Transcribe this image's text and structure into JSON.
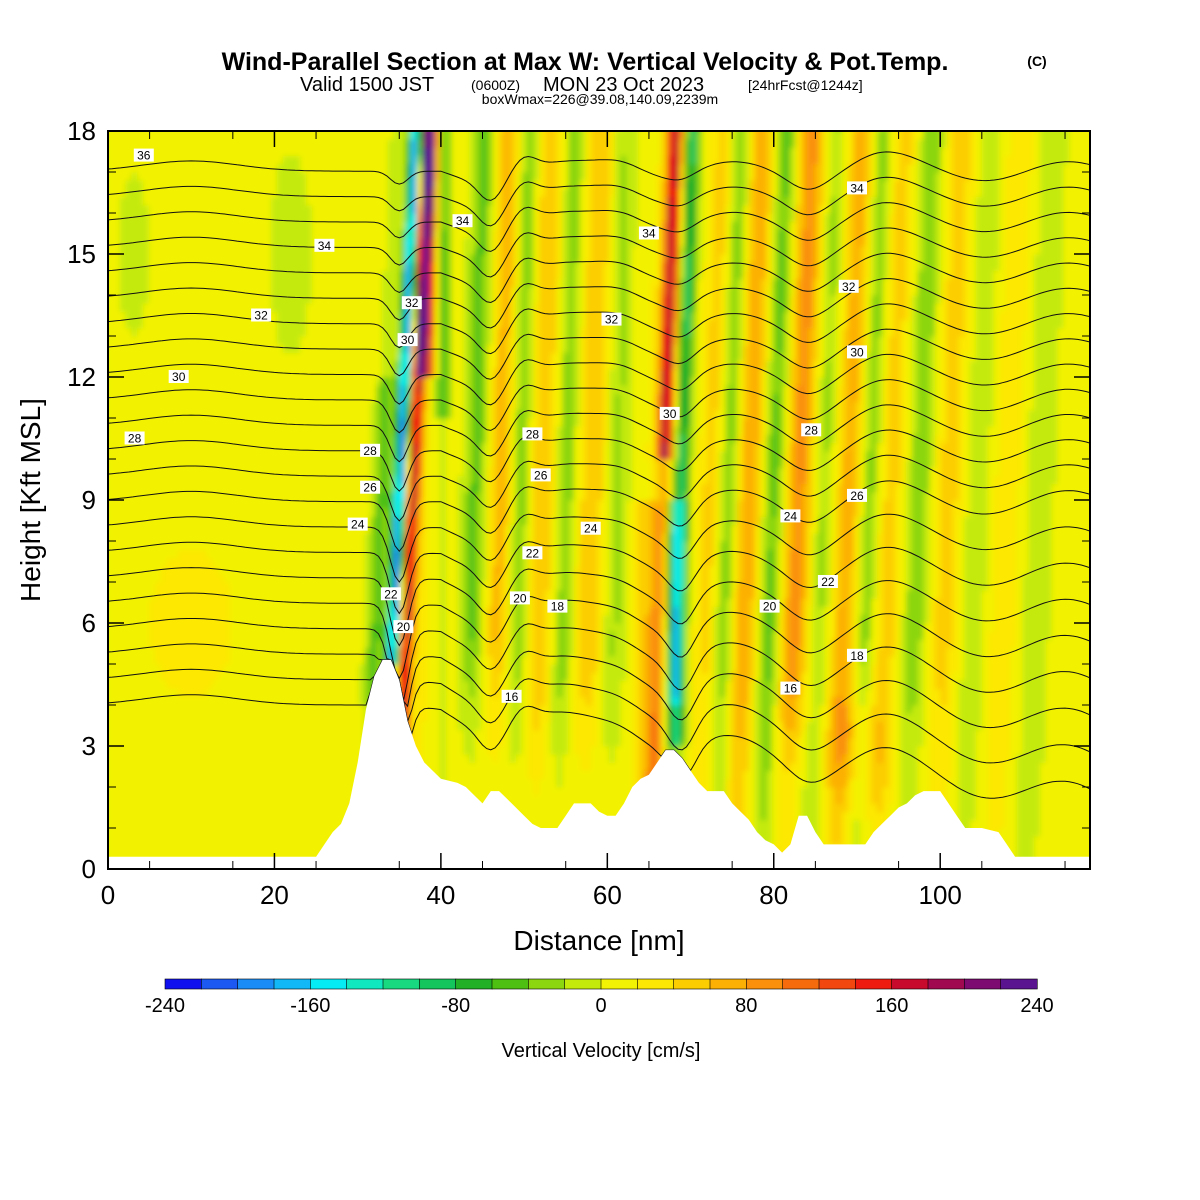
{
  "header": {
    "title": "Wind-Parallel Section at Max W: Vertical Velocity & Pot.Temp.",
    "copyright": "(C)",
    "valid_prefix": "Valid 1500 JST",
    "valid_utc": "(0600Z)",
    "valid_date": "MON 23 Oct 2023",
    "forecast": "[24hrFcst@1244z]",
    "box_info": "boxWmax=226@39.08,140.09,2239m"
  },
  "chart_data": {
    "type": "heatmap",
    "xlabel": "Distance [nm]",
    "ylabel": "Height [Kft MSL]",
    "xlim": [
      0,
      118
    ],
    "ylim": [
      0,
      18
    ],
    "x_ticks": [
      "0",
      "20",
      "40",
      "60",
      "80",
      "100"
    ],
    "y_ticks": [
      "0",
      "3",
      "6",
      "9",
      "12",
      "15",
      "18"
    ],
    "colorbar": {
      "label": "Vertical Velocity [cm/s]",
      "min": -240,
      "max": 240,
      "tick_labels": [
        "-240",
        "-160",
        "-80",
        "0",
        "80",
        "160",
        "240"
      ],
      "colors": [
        "#1010ee",
        "#1c58f2",
        "#1a8cf5",
        "#12b8f5",
        "#05ecf5",
        "#10e8c0",
        "#18d880",
        "#14c45c",
        "#22b026",
        "#4ec012",
        "#8cd610",
        "#c4ea0c",
        "#f2f204",
        "#fce802",
        "#fcce02",
        "#fcb004",
        "#fa900c",
        "#f66c0c",
        "#f24810",
        "#ee1c10",
        "#c80a2c",
        "#a00850",
        "#7c0a70",
        "#5a1490"
      ]
    },
    "contours": {
      "variable": "Potential Temperature",
      "labels": [
        {
          "text": "36",
          "x": 4.3,
          "y": 17.4
        },
        {
          "text": "34",
          "x": 26,
          "y": 15.2
        },
        {
          "text": "32",
          "x": 18.4,
          "y": 13.5
        },
        {
          "text": "30",
          "x": 8.5,
          "y": 12.0
        },
        {
          "text": "28",
          "x": 3.2,
          "y": 10.5
        },
        {
          "text": "34",
          "x": 42.6,
          "y": 15.8
        },
        {
          "text": "34",
          "x": 65,
          "y": 15.5
        },
        {
          "text": "34",
          "x": 90,
          "y": 16.6
        },
        {
          "text": "32",
          "x": 36.5,
          "y": 13.8
        },
        {
          "text": "32",
          "x": 60.5,
          "y": 13.4
        },
        {
          "text": "32",
          "x": 89,
          "y": 14.2
        },
        {
          "text": "30",
          "x": 36,
          "y": 12.9
        },
        {
          "text": "30",
          "x": 67.5,
          "y": 11.1
        },
        {
          "text": "30",
          "x": 90,
          "y": 12.6
        },
        {
          "text": "28",
          "x": 31.5,
          "y": 10.2
        },
        {
          "text": "28",
          "x": 51,
          "y": 10.6
        },
        {
          "text": "28",
          "x": 84.5,
          "y": 10.7
        },
        {
          "text": "26",
          "x": 31.5,
          "y": 9.3
        },
        {
          "text": "26",
          "x": 52,
          "y": 9.6
        },
        {
          "text": "26",
          "x": 90,
          "y": 9.1
        },
        {
          "text": "24",
          "x": 30,
          "y": 8.4
        },
        {
          "text": "24",
          "x": 58,
          "y": 8.3
        },
        {
          "text": "24",
          "x": 82,
          "y": 8.6
        },
        {
          "text": "22",
          "x": 34,
          "y": 6.7
        },
        {
          "text": "22",
          "x": 51,
          "y": 7.7
        },
        {
          "text": "22",
          "x": 86.5,
          "y": 7.0
        },
        {
          "text": "20",
          "x": 35.5,
          "y": 5.9
        },
        {
          "text": "20",
          "x": 49.5,
          "y": 6.6
        },
        {
          "text": "20",
          "x": 79.5,
          "y": 6.4
        },
        {
          "text": "18",
          "x": 54,
          "y": 6.4
        },
        {
          "text": "18",
          "x": 90,
          "y": 5.2
        },
        {
          "text": "16",
          "x": 48.5,
          "y": 4.2
        },
        {
          "text": "16",
          "x": 82,
          "y": 4.4
        }
      ]
    },
    "terrain_profile": [
      [
        0,
        0.3
      ],
      [
        25,
        0.3
      ],
      [
        26,
        0.6
      ],
      [
        27,
        0.9
      ],
      [
        28,
        1.1
      ],
      [
        29,
        1.6
      ],
      [
        30,
        2.6
      ],
      [
        31,
        3.9
      ],
      [
        32,
        4.7
      ],
      [
        33,
        5.1
      ],
      [
        34,
        5.1
      ],
      [
        35,
        4.6
      ],
      [
        36,
        3.6
      ],
      [
        37,
        3.0
      ],
      [
        38,
        2.6
      ],
      [
        39,
        2.4
      ],
      [
        40,
        2.2
      ],
      [
        42,
        2.1
      ],
      [
        43,
        2.0
      ],
      [
        44,
        1.8
      ],
      [
        45,
        1.6
      ],
      [
        46,
        1.9
      ],
      [
        47,
        1.9
      ],
      [
        48,
        1.7
      ],
      [
        49,
        1.5
      ],
      [
        50,
        1.3
      ],
      [
        51,
        1.1
      ],
      [
        52,
        1.0
      ],
      [
        53,
        1.0
      ],
      [
        54,
        1.0
      ],
      [
        55,
        1.3
      ],
      [
        56,
        1.6
      ],
      [
        57,
        1.6
      ],
      [
        58,
        1.6
      ],
      [
        59,
        1.4
      ],
      [
        60,
        1.3
      ],
      [
        61,
        1.3
      ],
      [
        62,
        1.6
      ],
      [
        63,
        2.0
      ],
      [
        64,
        2.2
      ],
      [
        65,
        2.3
      ],
      [
        66,
        2.6
      ],
      [
        67,
        2.9
      ],
      [
        68,
        2.9
      ],
      [
        69,
        2.7
      ],
      [
        70,
        2.4
      ],
      [
        71,
        2.1
      ],
      [
        72,
        1.9
      ],
      [
        73,
        1.9
      ],
      [
        74,
        1.9
      ],
      [
        75,
        1.6
      ],
      [
        76,
        1.4
      ],
      [
        77,
        1.2
      ],
      [
        78,
        0.9
      ],
      [
        79,
        0.7
      ],
      [
        80,
        0.6
      ],
      [
        81,
        0.4
      ],
      [
        82,
        0.6
      ],
      [
        83,
        1.3
      ],
      [
        84,
        1.3
      ],
      [
        85,
        0.9
      ],
      [
        86,
        0.6
      ],
      [
        87,
        0.6
      ],
      [
        88,
        0.6
      ],
      [
        89,
        0.6
      ],
      [
        90,
        0.6
      ],
      [
        91,
        0.6
      ],
      [
        92,
        0.9
      ],
      [
        93,
        1.1
      ],
      [
        94,
        1.3
      ],
      [
        95,
        1.5
      ],
      [
        96,
        1.6
      ],
      [
        97,
        1.8
      ],
      [
        98,
        1.9
      ],
      [
        99,
        1.9
      ],
      [
        100,
        1.9
      ],
      [
        101,
        1.6
      ],
      [
        102,
        1.3
      ],
      [
        103,
        1.0
      ],
      [
        105,
        1.0
      ],
      [
        107,
        0.9
      ],
      [
        108,
        0.6
      ],
      [
        109,
        0.3
      ],
      [
        118,
        0.3
      ]
    ]
  }
}
